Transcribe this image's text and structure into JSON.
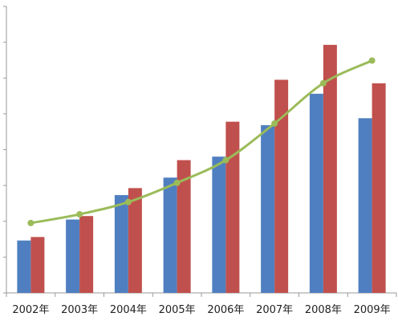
{
  "chart_data": {
    "type": "bar",
    "categories": [
      "2002年",
      "2003年",
      "2004年",
      "2005年",
      "2006年",
      "2007年",
      "2008年",
      "2009年"
    ],
    "series": [
      {
        "type": "bar",
        "color": "#4f7fc0",
        "values": [
          15,
          21,
          28,
          33,
          39,
          48,
          57,
          50
        ]
      },
      {
        "type": "bar",
        "color": "#c0504d",
        "values": [
          16,
          22,
          30,
          38,
          49,
          61,
          71,
          60
        ]
      },
      {
        "type": "line",
        "color": "#9bbb59",
        "values": [
          20,
          22.5,
          26,
          31.5,
          38,
          48.5,
          60,
          66.5
        ]
      }
    ],
    "title": "",
    "xlabel": "",
    "ylabel": "",
    "ylim": [
      0,
      82
    ],
    "grid": false,
    "legend": "none"
  }
}
